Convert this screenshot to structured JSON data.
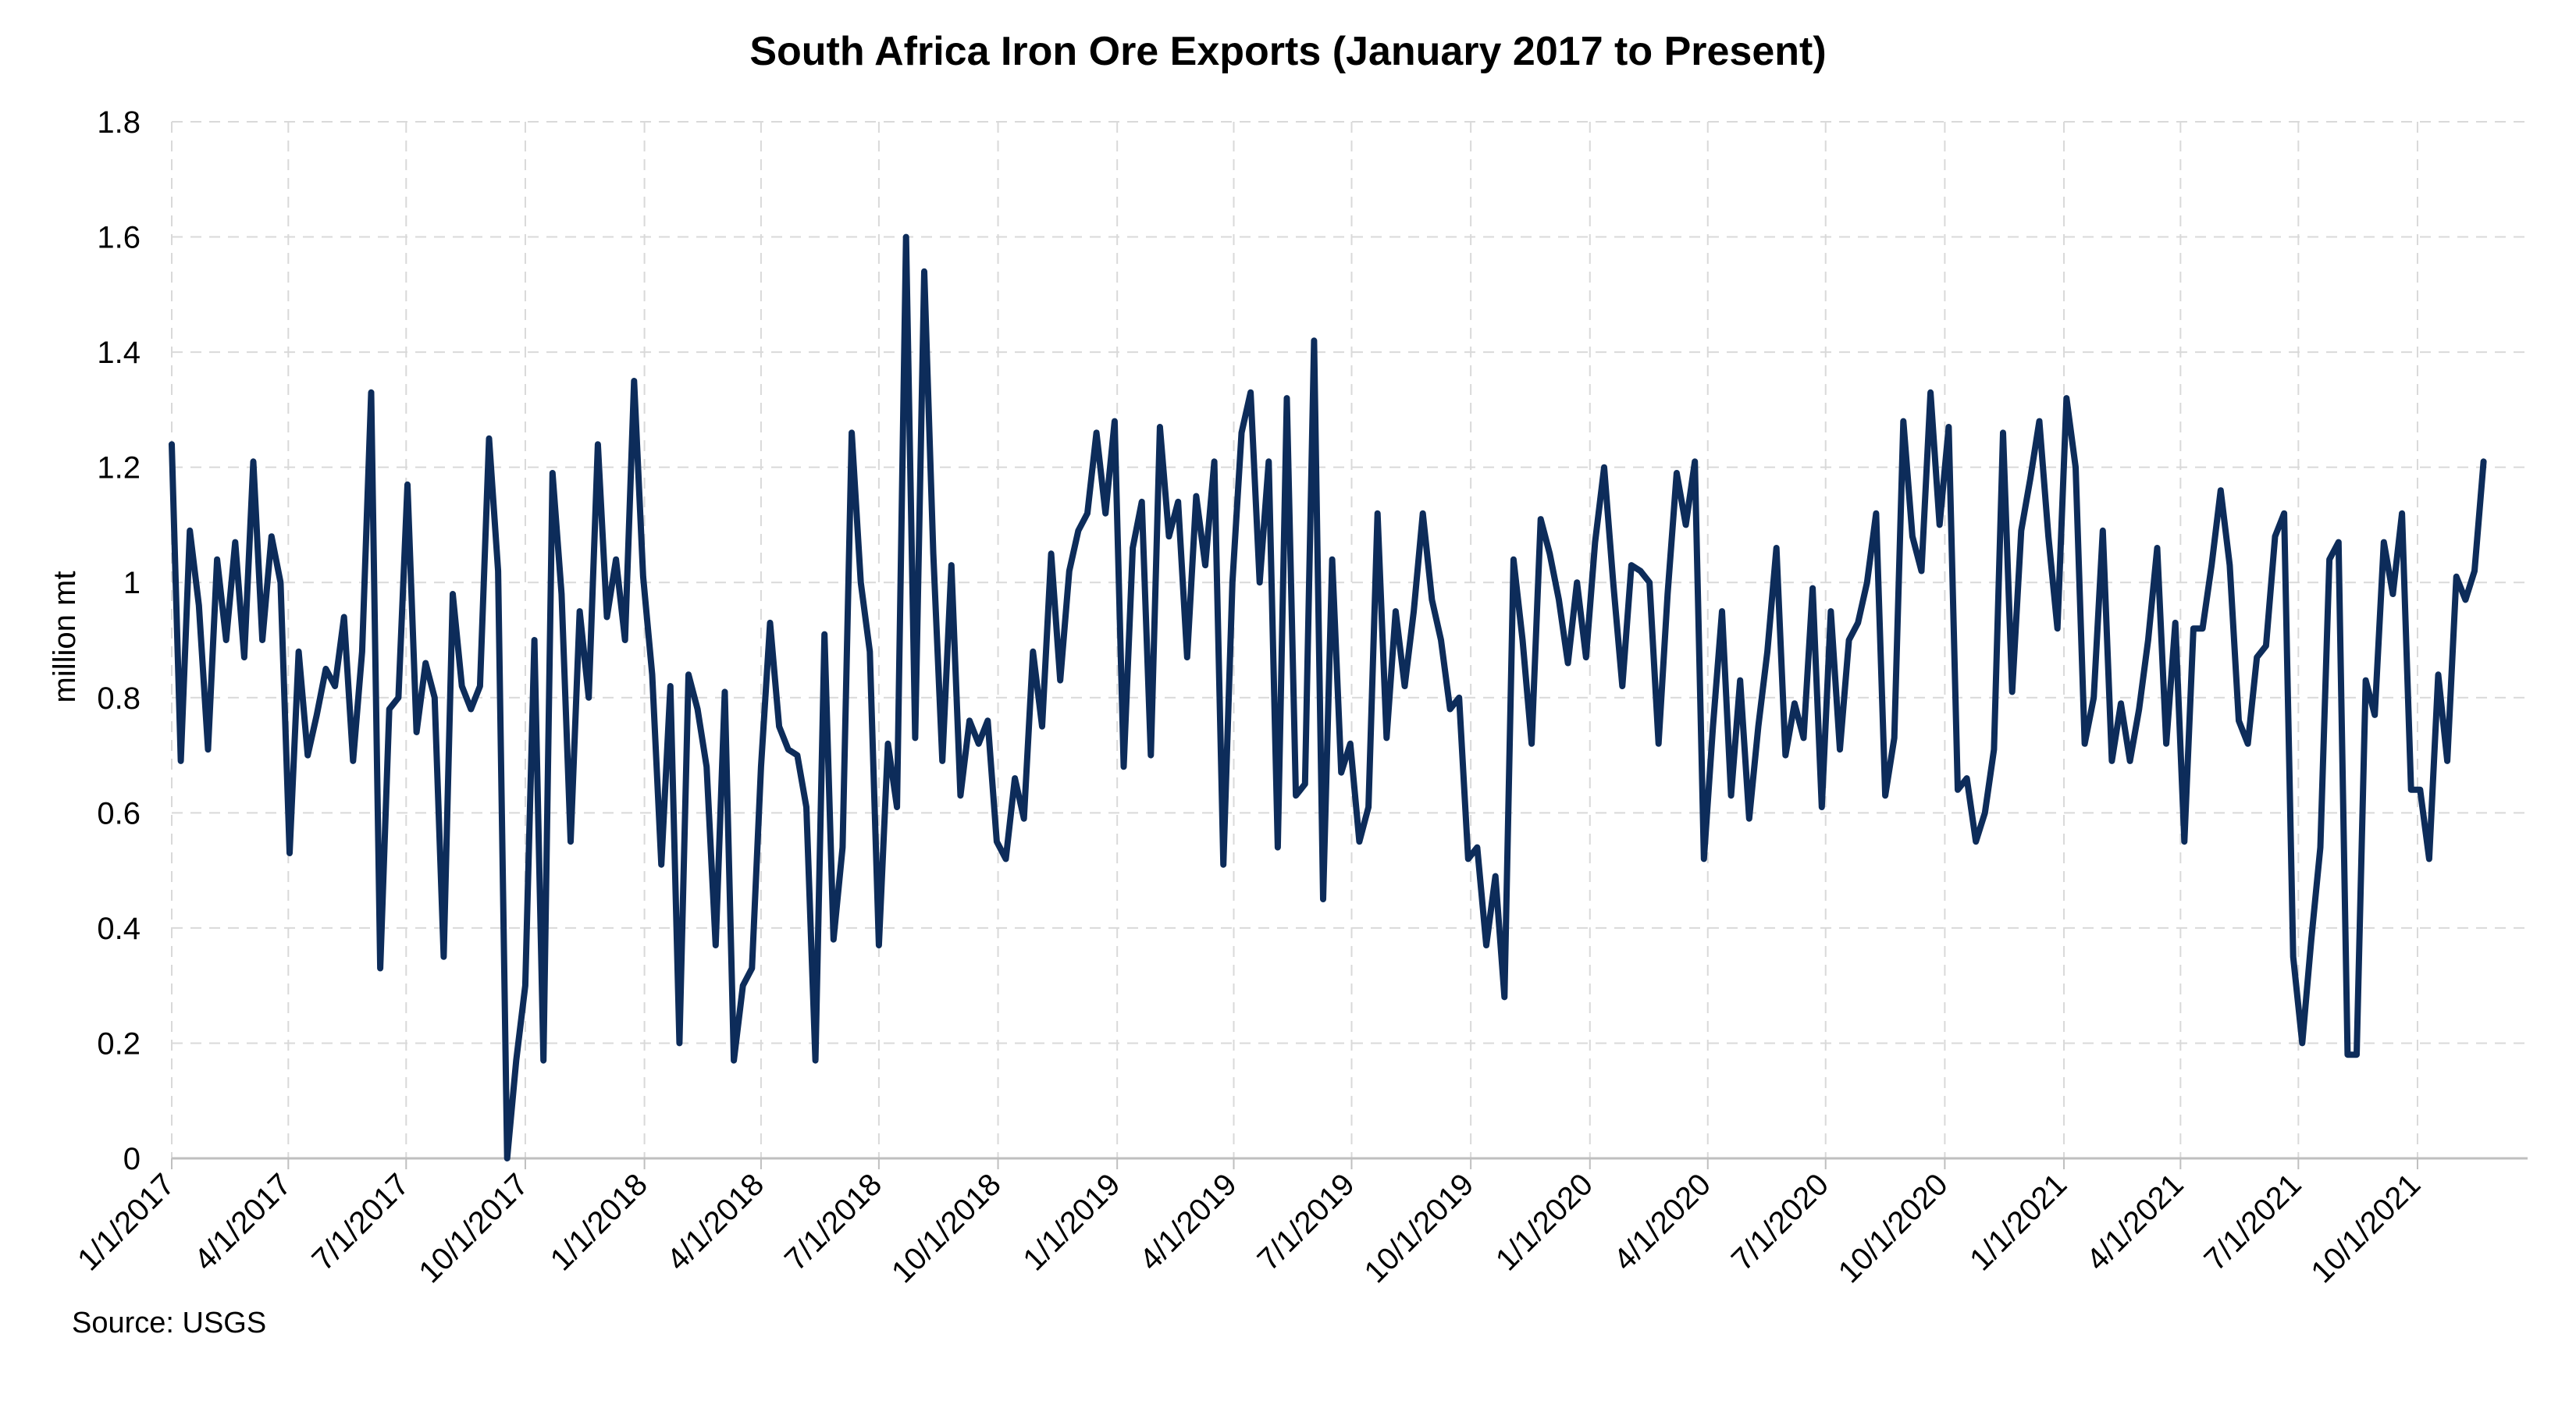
{
  "colors": {
    "line": "#0d2c5a",
    "grid": "#d9d9d9",
    "axis": "#bfbfbf"
  },
  "source": "Source: USGS",
  "chart_data": {
    "type": "line",
    "title": "South Africa Iron Ore Exports (January 2017 to Present)",
    "xlabel": "",
    "ylabel": "million mt",
    "ylim": [
      0,
      1.8
    ],
    "yticks": [
      "0",
      "0.2",
      "0.4",
      "0.6",
      "0.8",
      "1",
      "1.2",
      "1.4",
      "1.6",
      "1.8"
    ],
    "xlim": [
      "2017-01-01",
      "2021-12-25"
    ],
    "xticks": [
      {
        "date": "2017-01-01",
        "label": "1/1/2017"
      },
      {
        "date": "2017-04-01",
        "label": "4/1/2017"
      },
      {
        "date": "2017-07-01",
        "label": "7/1/2017"
      },
      {
        "date": "2017-10-01",
        "label": "10/1/2017"
      },
      {
        "date": "2018-01-01",
        "label": "1/1/2018"
      },
      {
        "date": "2018-04-01",
        "label": "4/1/2018"
      },
      {
        "date": "2018-07-01",
        "label": "7/1/2018"
      },
      {
        "date": "2018-10-01",
        "label": "10/1/2018"
      },
      {
        "date": "2019-01-01",
        "label": "1/1/2019"
      },
      {
        "date": "2019-04-01",
        "label": "4/1/2019"
      },
      {
        "date": "2019-07-01",
        "label": "7/1/2019"
      },
      {
        "date": "2019-10-01",
        "label": "10/1/2019"
      },
      {
        "date": "2020-01-01",
        "label": "1/1/2020"
      },
      {
        "date": "2020-04-01",
        "label": "4/1/2020"
      },
      {
        "date": "2020-07-01",
        "label": "7/1/2020"
      },
      {
        "date": "2020-10-01",
        "label": "10/1/2020"
      },
      {
        "date": "2021-01-01",
        "label": "1/1/2021"
      },
      {
        "date": "2021-04-01",
        "label": "4/1/2021"
      },
      {
        "date": "2021-07-01",
        "label": "7/1/2021"
      },
      {
        "date": "2021-10-01",
        "label": "10/1/2021"
      }
    ],
    "grid": true,
    "series": [
      {
        "points": [
          [
            "2017-01-01",
            1.24
          ],
          [
            "2017-01-08",
            0.69
          ],
          [
            "2017-01-15",
            1.09
          ],
          [
            "2017-01-22",
            0.96
          ],
          [
            "2017-01-29",
            0.71
          ],
          [
            "2017-02-05",
            1.04
          ],
          [
            "2017-02-12",
            0.9
          ],
          [
            "2017-02-19",
            1.07
          ],
          [
            "2017-02-26",
            0.87
          ],
          [
            "2017-03-05",
            1.21
          ],
          [
            "2017-03-12",
            0.9
          ],
          [
            "2017-03-19",
            1.08
          ],
          [
            "2017-03-26",
            1.0
          ],
          [
            "2017-04-02",
            0.53
          ],
          [
            "2017-04-09",
            0.88
          ],
          [
            "2017-04-16",
            0.7
          ],
          [
            "2017-04-23",
            0.77
          ],
          [
            "2017-04-30",
            0.85
          ],
          [
            "2017-05-07",
            0.82
          ],
          [
            "2017-05-14",
            0.94
          ],
          [
            "2017-05-21",
            0.69
          ],
          [
            "2017-05-28",
            0.88
          ],
          [
            "2017-06-04",
            1.33
          ],
          [
            "2017-06-11",
            0.33
          ],
          [
            "2017-06-18",
            0.78
          ],
          [
            "2017-06-25",
            0.8
          ],
          [
            "2017-07-02",
            1.17
          ],
          [
            "2017-07-09",
            0.74
          ],
          [
            "2017-07-16",
            0.86
          ],
          [
            "2017-07-23",
            0.8
          ],
          [
            "2017-07-30",
            0.35
          ],
          [
            "2017-08-06",
            0.98
          ],
          [
            "2017-08-13",
            0.82
          ],
          [
            "2017-08-20",
            0.78
          ],
          [
            "2017-08-27",
            0.82
          ],
          [
            "2017-09-03",
            1.25
          ],
          [
            "2017-09-10",
            1.02
          ],
          [
            "2017-09-17",
            0.0
          ],
          [
            "2017-09-24",
            0.17
          ],
          [
            "2017-10-01",
            0.3
          ],
          [
            "2017-10-08",
            0.9
          ],
          [
            "2017-10-15",
            0.17
          ],
          [
            "2017-10-22",
            1.19
          ],
          [
            "2017-10-29",
            0.98
          ],
          [
            "2017-11-05",
            0.55
          ],
          [
            "2017-11-12",
            0.95
          ],
          [
            "2017-11-19",
            0.8
          ],
          [
            "2017-11-26",
            1.24
          ],
          [
            "2017-12-03",
            0.94
          ],
          [
            "2017-12-10",
            1.04
          ],
          [
            "2017-12-17",
            0.9
          ],
          [
            "2017-12-24",
            1.35
          ],
          [
            "2017-12-31",
            1.01
          ],
          [
            "2018-01-07",
            0.84
          ],
          [
            "2018-01-14",
            0.51
          ],
          [
            "2018-01-21",
            0.82
          ],
          [
            "2018-01-28",
            0.2
          ],
          [
            "2018-02-04",
            0.84
          ],
          [
            "2018-02-11",
            0.78
          ],
          [
            "2018-02-18",
            0.68
          ],
          [
            "2018-02-25",
            0.37
          ],
          [
            "2018-03-04",
            0.81
          ],
          [
            "2018-03-11",
            0.17
          ],
          [
            "2018-03-18",
            0.3
          ],
          [
            "2018-03-25",
            0.33
          ],
          [
            "2018-04-01",
            0.68
          ],
          [
            "2018-04-08",
            0.93
          ],
          [
            "2018-04-15",
            0.75
          ],
          [
            "2018-04-22",
            0.71
          ],
          [
            "2018-04-29",
            0.7
          ],
          [
            "2018-05-06",
            0.61
          ],
          [
            "2018-05-13",
            0.17
          ],
          [
            "2018-05-20",
            0.91
          ],
          [
            "2018-05-27",
            0.38
          ],
          [
            "2018-06-03",
            0.54
          ],
          [
            "2018-06-10",
            1.26
          ],
          [
            "2018-06-17",
            1.0
          ],
          [
            "2018-06-24",
            0.88
          ],
          [
            "2018-07-01",
            0.37
          ],
          [
            "2018-07-08",
            0.72
          ],
          [
            "2018-07-15",
            0.61
          ],
          [
            "2018-07-22",
            1.6
          ],
          [
            "2018-07-29",
            0.73
          ],
          [
            "2018-08-05",
            1.54
          ],
          [
            "2018-08-12",
            1.05
          ],
          [
            "2018-08-19",
            0.69
          ],
          [
            "2018-08-26",
            1.03
          ],
          [
            "2018-09-02",
            0.63
          ],
          [
            "2018-09-09",
            0.76
          ],
          [
            "2018-09-16",
            0.72
          ],
          [
            "2018-09-23",
            0.76
          ],
          [
            "2018-09-30",
            0.55
          ],
          [
            "2018-10-07",
            0.52
          ],
          [
            "2018-10-14",
            0.66
          ],
          [
            "2018-10-21",
            0.59
          ],
          [
            "2018-10-28",
            0.88
          ],
          [
            "2018-11-04",
            0.75
          ],
          [
            "2018-11-11",
            1.05
          ],
          [
            "2018-11-18",
            0.83
          ],
          [
            "2018-11-25",
            1.02
          ],
          [
            "2018-12-02",
            1.09
          ],
          [
            "2018-12-09",
            1.12
          ],
          [
            "2018-12-16",
            1.26
          ],
          [
            "2018-12-23",
            1.12
          ],
          [
            "2018-12-30",
            1.28
          ],
          [
            "2019-01-06",
            0.68
          ],
          [
            "2019-01-13",
            1.06
          ],
          [
            "2019-01-20",
            1.14
          ],
          [
            "2019-01-27",
            0.7
          ],
          [
            "2019-02-03",
            1.27
          ],
          [
            "2019-02-10",
            1.08
          ],
          [
            "2019-02-17",
            1.14
          ],
          [
            "2019-02-24",
            0.87
          ],
          [
            "2019-03-03",
            1.15
          ],
          [
            "2019-03-10",
            1.03
          ],
          [
            "2019-03-17",
            1.21
          ],
          [
            "2019-03-24",
            0.51
          ],
          [
            "2019-03-31",
            1.0
          ],
          [
            "2019-04-07",
            1.26
          ],
          [
            "2019-04-14",
            1.33
          ],
          [
            "2019-04-21",
            1.0
          ],
          [
            "2019-04-28",
            1.21
          ],
          [
            "2019-05-05",
            0.54
          ],
          [
            "2019-05-12",
            1.32
          ],
          [
            "2019-05-19",
            0.63
          ],
          [
            "2019-05-26",
            0.65
          ],
          [
            "2019-06-02",
            1.42
          ],
          [
            "2019-06-09",
            0.45
          ],
          [
            "2019-06-16",
            1.04
          ],
          [
            "2019-06-23",
            0.67
          ],
          [
            "2019-06-30",
            0.72
          ],
          [
            "2019-07-07",
            0.55
          ],
          [
            "2019-07-14",
            0.61
          ],
          [
            "2019-07-21",
            1.12
          ],
          [
            "2019-07-28",
            0.73
          ],
          [
            "2019-08-04",
            0.95
          ],
          [
            "2019-08-11",
            0.82
          ],
          [
            "2019-08-18",
            0.95
          ],
          [
            "2019-08-25",
            1.12
          ],
          [
            "2019-09-01",
            0.97
          ],
          [
            "2019-09-08",
            0.9
          ],
          [
            "2019-09-15",
            0.78
          ],
          [
            "2019-09-22",
            0.8
          ],
          [
            "2019-09-29",
            0.52
          ],
          [
            "2019-10-06",
            0.54
          ],
          [
            "2019-10-13",
            0.37
          ],
          [
            "2019-10-20",
            0.49
          ],
          [
            "2019-10-27",
            0.28
          ],
          [
            "2019-11-03",
            1.04
          ],
          [
            "2019-11-10",
            0.9
          ],
          [
            "2019-11-17",
            0.72
          ],
          [
            "2019-11-24",
            1.11
          ],
          [
            "2019-12-01",
            1.05
          ],
          [
            "2019-12-08",
            0.97
          ],
          [
            "2019-12-15",
            0.86
          ],
          [
            "2019-12-22",
            1.0
          ],
          [
            "2019-12-29",
            0.87
          ],
          [
            "2020-01-05",
            1.07
          ],
          [
            "2020-01-12",
            1.2
          ],
          [
            "2020-01-19",
            1.0
          ],
          [
            "2020-01-26",
            0.82
          ],
          [
            "2020-02-02",
            1.03
          ],
          [
            "2020-02-09",
            1.02
          ],
          [
            "2020-02-16",
            1.0
          ],
          [
            "2020-02-23",
            0.72
          ],
          [
            "2020-03-01",
            0.98
          ],
          [
            "2020-03-08",
            1.19
          ],
          [
            "2020-03-15",
            1.1
          ],
          [
            "2020-03-22",
            1.21
          ],
          [
            "2020-03-29",
            0.52
          ],
          [
            "2020-04-05",
            0.75
          ],
          [
            "2020-04-12",
            0.95
          ],
          [
            "2020-04-19",
            0.63
          ],
          [
            "2020-04-26",
            0.83
          ],
          [
            "2020-05-03",
            0.59
          ],
          [
            "2020-05-10",
            0.75
          ],
          [
            "2020-05-17",
            0.88
          ],
          [
            "2020-05-24",
            1.06
          ],
          [
            "2020-05-31",
            0.7
          ],
          [
            "2020-06-07",
            0.79
          ],
          [
            "2020-06-14",
            0.73
          ],
          [
            "2020-06-21",
            0.99
          ],
          [
            "2020-06-28",
            0.61
          ],
          [
            "2020-07-05",
            0.95
          ],
          [
            "2020-07-12",
            0.71
          ],
          [
            "2020-07-19",
            0.9
          ],
          [
            "2020-07-26",
            0.93
          ],
          [
            "2020-08-02",
            1.0
          ],
          [
            "2020-08-09",
            1.12
          ],
          [
            "2020-08-16",
            0.63
          ],
          [
            "2020-08-23",
            0.73
          ],
          [
            "2020-08-30",
            1.28
          ],
          [
            "2020-09-06",
            1.08
          ],
          [
            "2020-09-13",
            1.02
          ],
          [
            "2020-09-20",
            1.33
          ],
          [
            "2020-09-27",
            1.1
          ],
          [
            "2020-10-04",
            1.27
          ],
          [
            "2020-10-11",
            0.64
          ],
          [
            "2020-10-18",
            0.66
          ],
          [
            "2020-10-25",
            0.55
          ],
          [
            "2020-11-01",
            0.6
          ],
          [
            "2020-11-08",
            0.71
          ],
          [
            "2020-11-15",
            1.26
          ],
          [
            "2020-11-22",
            0.81
          ],
          [
            "2020-11-29",
            1.09
          ],
          [
            "2020-12-06",
            1.18
          ],
          [
            "2020-12-13",
            1.28
          ],
          [
            "2020-12-20",
            1.08
          ],
          [
            "2020-12-27",
            0.92
          ],
          [
            "2021-01-03",
            1.32
          ],
          [
            "2021-01-10",
            1.2
          ],
          [
            "2021-01-17",
            0.72
          ],
          [
            "2021-01-24",
            0.8
          ],
          [
            "2021-01-31",
            1.09
          ],
          [
            "2021-02-07",
            0.69
          ],
          [
            "2021-02-14",
            0.79
          ],
          [
            "2021-02-21",
            0.69
          ],
          [
            "2021-02-28",
            0.78
          ],
          [
            "2021-03-07",
            0.9
          ],
          [
            "2021-03-14",
            1.06
          ],
          [
            "2021-03-21",
            0.72
          ],
          [
            "2021-03-28",
            0.93
          ],
          [
            "2021-04-04",
            0.55
          ],
          [
            "2021-04-11",
            0.92
          ],
          [
            "2021-04-18",
            0.92
          ],
          [
            "2021-04-25",
            1.03
          ],
          [
            "2021-05-02",
            1.16
          ],
          [
            "2021-05-09",
            1.03
          ],
          [
            "2021-05-16",
            0.76
          ],
          [
            "2021-05-23",
            0.72
          ],
          [
            "2021-05-30",
            0.87
          ],
          [
            "2021-06-06",
            0.89
          ],
          [
            "2021-06-13",
            1.08
          ],
          [
            "2021-06-20",
            1.12
          ],
          [
            "2021-06-27",
            0.35
          ],
          [
            "2021-07-04",
            0.2
          ],
          [
            "2021-07-11",
            0.38
          ],
          [
            "2021-07-18",
            0.54
          ],
          [
            "2021-07-25",
            1.04
          ],
          [
            "2021-08-01",
            1.07
          ],
          [
            "2021-08-08",
            0.18
          ],
          [
            "2021-08-15",
            0.18
          ],
          [
            "2021-08-22",
            0.83
          ],
          [
            "2021-08-29",
            0.77
          ],
          [
            "2021-09-05",
            1.07
          ],
          [
            "2021-09-12",
            0.98
          ],
          [
            "2021-09-19",
            1.12
          ],
          [
            "2021-09-26",
            0.64
          ],
          [
            "2021-10-03",
            0.64
          ],
          [
            "2021-10-10",
            0.52
          ],
          [
            "2021-10-17",
            0.84
          ],
          [
            "2021-10-24",
            0.69
          ],
          [
            "2021-10-31",
            1.01
          ],
          [
            "2021-11-07",
            0.97
          ],
          [
            "2021-11-14",
            1.02
          ],
          [
            "2021-11-21",
            1.21
          ]
        ]
      }
    ]
  }
}
